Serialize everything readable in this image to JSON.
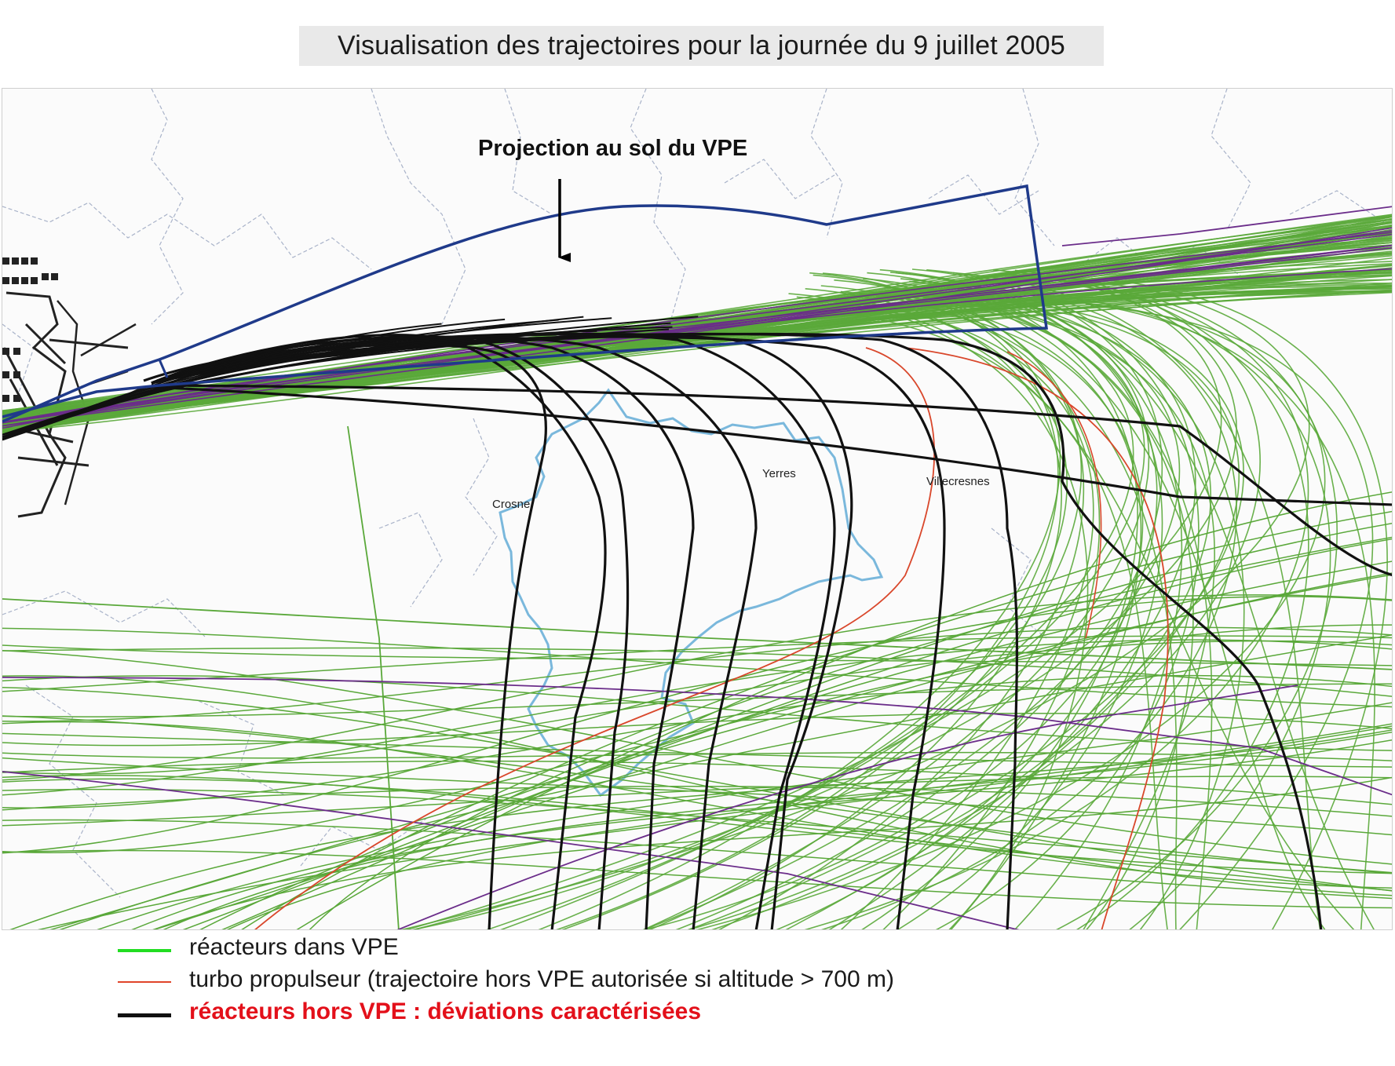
{
  "title": "Visualisation des trajectoires pour la journée du 9 juillet 2005",
  "annotation": "Projection au sol du VPE",
  "places": [
    {
      "name": "Crosne"
    },
    {
      "name": "Yerres"
    },
    {
      "name": "Villecresnes"
    }
  ],
  "legend": [
    {
      "label": "réacteurs dans VPE",
      "color": "#22dd22",
      "style": "normal"
    },
    {
      "label": "turbo propulseur (trajectoire hors VPE autorisée si altitude > 700 m)",
      "color": "#e0442a",
      "style": "normal"
    },
    {
      "label": "réacteurs hors VPE : déviations caractérisées",
      "color": "#111111",
      "style": "alert"
    }
  ],
  "colors": {
    "vpe_outline": "#1f3a8a",
    "commune_boundary": "#7ab8dc",
    "green_tracks": "#5aa83a",
    "purple_tracks": "#6b2d8a",
    "red_tracks": "#d9472b",
    "black_tracks": "#111111",
    "admin_boundaries": "#a9b3c9",
    "arrow": "#000000"
  }
}
